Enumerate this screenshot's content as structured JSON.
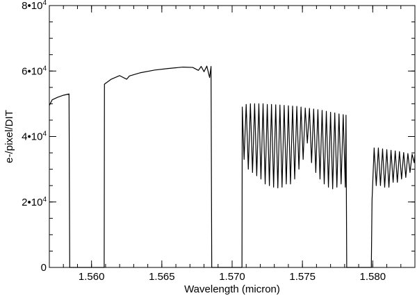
{
  "chart_data": {
    "type": "line",
    "title": "",
    "xlabel": "Wavelength (micron)",
    "ylabel": "e-/pixel/DIT",
    "xlim": [
      1.557,
      1.583
    ],
    "ylim": [
      0,
      80000
    ],
    "grid": false,
    "legend": "none",
    "x_ticks": [
      {
        "value": 1.56,
        "label": "1.560"
      },
      {
        "value": 1.565,
        "label": "1.565"
      },
      {
        "value": 1.57,
        "label": "1.570"
      },
      {
        "value": 1.575,
        "label": "1.575"
      },
      {
        "value": 1.58,
        "label": "1.580"
      }
    ],
    "x_minor_step": 0.001,
    "y_ticks": [
      {
        "value": 0,
        "mantissa": "0",
        "exponent": ""
      },
      {
        "value": 20000,
        "mantissa": "2•10",
        "exponent": "4"
      },
      {
        "value": 40000,
        "mantissa": "4•10",
        "exponent": "4"
      },
      {
        "value": 60000,
        "mantissa": "6•10",
        "exponent": "4"
      },
      {
        "value": 80000,
        "mantissa": "8•10",
        "exponent": "4"
      }
    ],
    "y_minor_step": 5000,
    "series": [
      {
        "color": "#000000",
        "points": [
          [
            1.557,
            49500
          ],
          [
            1.5572,
            51200
          ],
          [
            1.5576,
            52000
          ],
          [
            1.558,
            52600
          ],
          [
            1.5584,
            53000
          ],
          [
            1.55845,
            0
          ],
          [
            1.5609,
            0
          ],
          [
            1.56092,
            56000
          ],
          [
            1.5614,
            57500
          ],
          [
            1.562,
            58600
          ],
          [
            1.5625,
            57500
          ],
          [
            1.5627,
            58500
          ],
          [
            1.5635,
            59500
          ],
          [
            1.5645,
            60300
          ],
          [
            1.5655,
            60800
          ],
          [
            1.5665,
            61200
          ],
          [
            1.5672,
            61100
          ],
          [
            1.5676,
            60200
          ],
          [
            1.5678,
            61400
          ],
          [
            1.568,
            59800
          ],
          [
            1.5682,
            61500
          ],
          [
            1.5684,
            58000
          ],
          [
            1.5685,
            61400
          ],
          [
            1.56855,
            0
          ],
          [
            1.5707,
            0
          ],
          [
            1.57072,
            49000
          ],
          [
            1.57085,
            33000
          ],
          [
            1.571,
            49800
          ],
          [
            1.57115,
            30000
          ],
          [
            1.5713,
            50000
          ],
          [
            1.57145,
            29000
          ],
          [
            1.5716,
            50000
          ],
          [
            1.57175,
            28000
          ],
          [
            1.5719,
            50000
          ],
          [
            1.57205,
            27000
          ],
          [
            1.5722,
            50000
          ],
          [
            1.57235,
            25500
          ],
          [
            1.5725,
            49800
          ],
          [
            1.57265,
            25000
          ],
          [
            1.5728,
            49800
          ],
          [
            1.57295,
            24500
          ],
          [
            1.5731,
            49700
          ],
          [
            1.57325,
            24300
          ],
          [
            1.5734,
            49600
          ],
          [
            1.57355,
            24500
          ],
          [
            1.5737,
            49500
          ],
          [
            1.57385,
            25500
          ],
          [
            1.574,
            49400
          ],
          [
            1.57415,
            25500
          ],
          [
            1.5743,
            49300
          ],
          [
            1.57445,
            27000
          ],
          [
            1.5746,
            49200
          ],
          [
            1.57475,
            30000
          ],
          [
            1.5749,
            49000
          ],
          [
            1.57505,
            33000
          ],
          [
            1.5752,
            48700
          ],
          [
            1.57535,
            38000
          ],
          [
            1.5755,
            48600
          ],
          [
            1.57565,
            32000
          ],
          [
            1.5758,
            48400
          ],
          [
            1.57595,
            29000
          ],
          [
            1.5761,
            48200
          ],
          [
            1.57625,
            27000
          ],
          [
            1.5764,
            48000
          ],
          [
            1.57655,
            25500
          ],
          [
            1.5767,
            47700
          ],
          [
            1.57685,
            24500
          ],
          [
            1.577,
            47400
          ],
          [
            1.57715,
            24000
          ],
          [
            1.5773,
            47200
          ],
          [
            1.57745,
            24500
          ],
          [
            1.5776,
            46900
          ],
          [
            1.57775,
            25500
          ],
          [
            1.5779,
            46700
          ],
          [
            1.57805,
            24500
          ],
          [
            1.5781,
            46500
          ],
          [
            1.57815,
            0
          ],
          [
            1.5799,
            0
          ],
          [
            1.57995,
            20500
          ],
          [
            1.5801,
            36500
          ],
          [
            1.58025,
            25000
          ],
          [
            1.5804,
            36500
          ],
          [
            1.58055,
            25000
          ],
          [
            1.5807,
            36200
          ],
          [
            1.58085,
            24500
          ],
          [
            1.581,
            36000
          ],
          [
            1.58115,
            24500
          ],
          [
            1.5813,
            35800
          ],
          [
            1.58145,
            26000
          ],
          [
            1.5816,
            35600
          ],
          [
            1.58175,
            26000
          ],
          [
            1.5819,
            35400
          ],
          [
            1.58205,
            27000
          ],
          [
            1.5822,
            35100
          ],
          [
            1.58235,
            27500
          ],
          [
            1.5825,
            34800
          ],
          [
            1.58265,
            29000
          ],
          [
            1.5828,
            34600
          ],
          [
            1.58295,
            32000
          ],
          [
            1.583,
            34400
          ]
        ]
      }
    ]
  }
}
